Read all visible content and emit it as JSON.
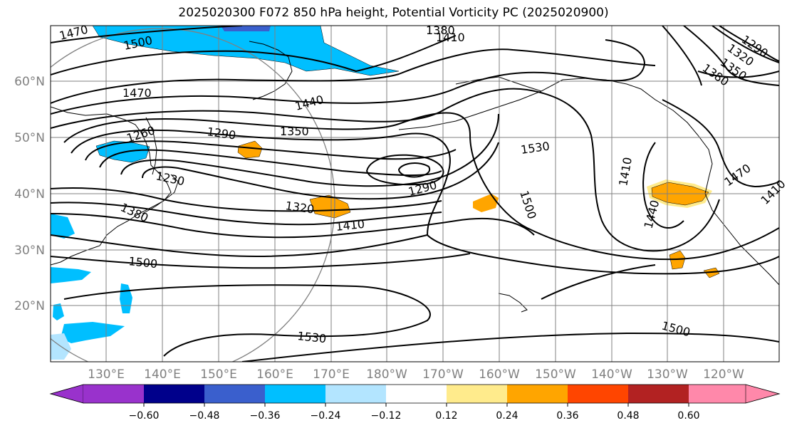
{
  "title": "2025020300 F072 850 hPa height, Potential Vorticity PC (2025020900)",
  "map": {
    "lat_labels": [
      "60°N",
      "50°N",
      "40°N",
      "30°N",
      "20°N"
    ],
    "lon_labels": [
      "130°E",
      "140°E",
      "150°E",
      "160°E",
      "170°E",
      "180°W",
      "170°W",
      "160°W",
      "150°W",
      "140°W",
      "130°W",
      "120°W"
    ],
    "contour_labels": [
      "1470",
      "1500",
      "1380",
      "1410",
      "1290",
      "1320",
      "1350",
      "1470",
      "1440",
      "1260",
      "1290",
      "1350",
      "1380",
      "1230",
      "1530",
      "1290",
      "1410",
      "1500",
      "1320",
      "1410",
      "1380",
      "1500",
      "1470",
      "1440",
      "1410",
      "1530",
      "1500"
    ],
    "colors": {
      "contour": "#000000",
      "grid": "#808080",
      "pv_neg_024": "#00bfff",
      "pv_neg_012": "#b3e5ff",
      "pv_pos_024": "#ffa500",
      "pv_pos_012": "#ffeb8c"
    }
  },
  "colorbar": {
    "ticks": [
      "−0.60",
      "−0.48",
      "−0.36",
      "−0.24",
      "−0.12",
      "0.12",
      "0.24",
      "0.36",
      "0.48",
      "0.60"
    ],
    "colors": [
      "#9932cc",
      "#00008b",
      "#3a5fcd",
      "#00bfff",
      "#b3e5ff",
      "#ffffff",
      "#ffeb8c",
      "#ffa500",
      "#ff4500",
      "#b22222",
      "#ff88aa"
    ]
  }
}
